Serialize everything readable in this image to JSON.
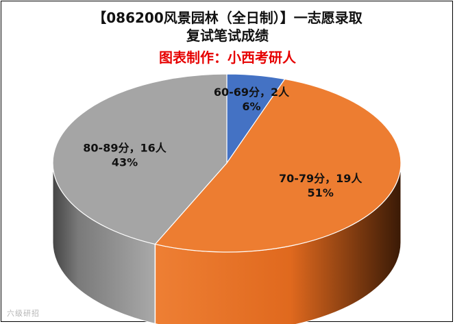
{
  "chart_data": {
    "type": "pie",
    "title": "【086200风景园林（全日制）】一志愿录取",
    "subtitle": "复试笔试成绩",
    "credit": "图表制作：小西考研人",
    "slices": [
      {
        "label": "60-69分",
        "count_text": "2人",
        "value": 2,
        "percent_text": "6%",
        "color": "#4472c4"
      },
      {
        "label": "70-79分",
        "count_text": "19人",
        "value": 19,
        "percent_text": "51%",
        "color": "#ed7d31"
      },
      {
        "label": "80-89分",
        "count_text": "16人",
        "value": 16,
        "percent_text": "43%",
        "color": "#a5a5a5"
      }
    ],
    "style": "3d-pie"
  },
  "watermark": {
    "text": "六级研招"
  },
  "colors": {
    "credit": "#e60000"
  }
}
